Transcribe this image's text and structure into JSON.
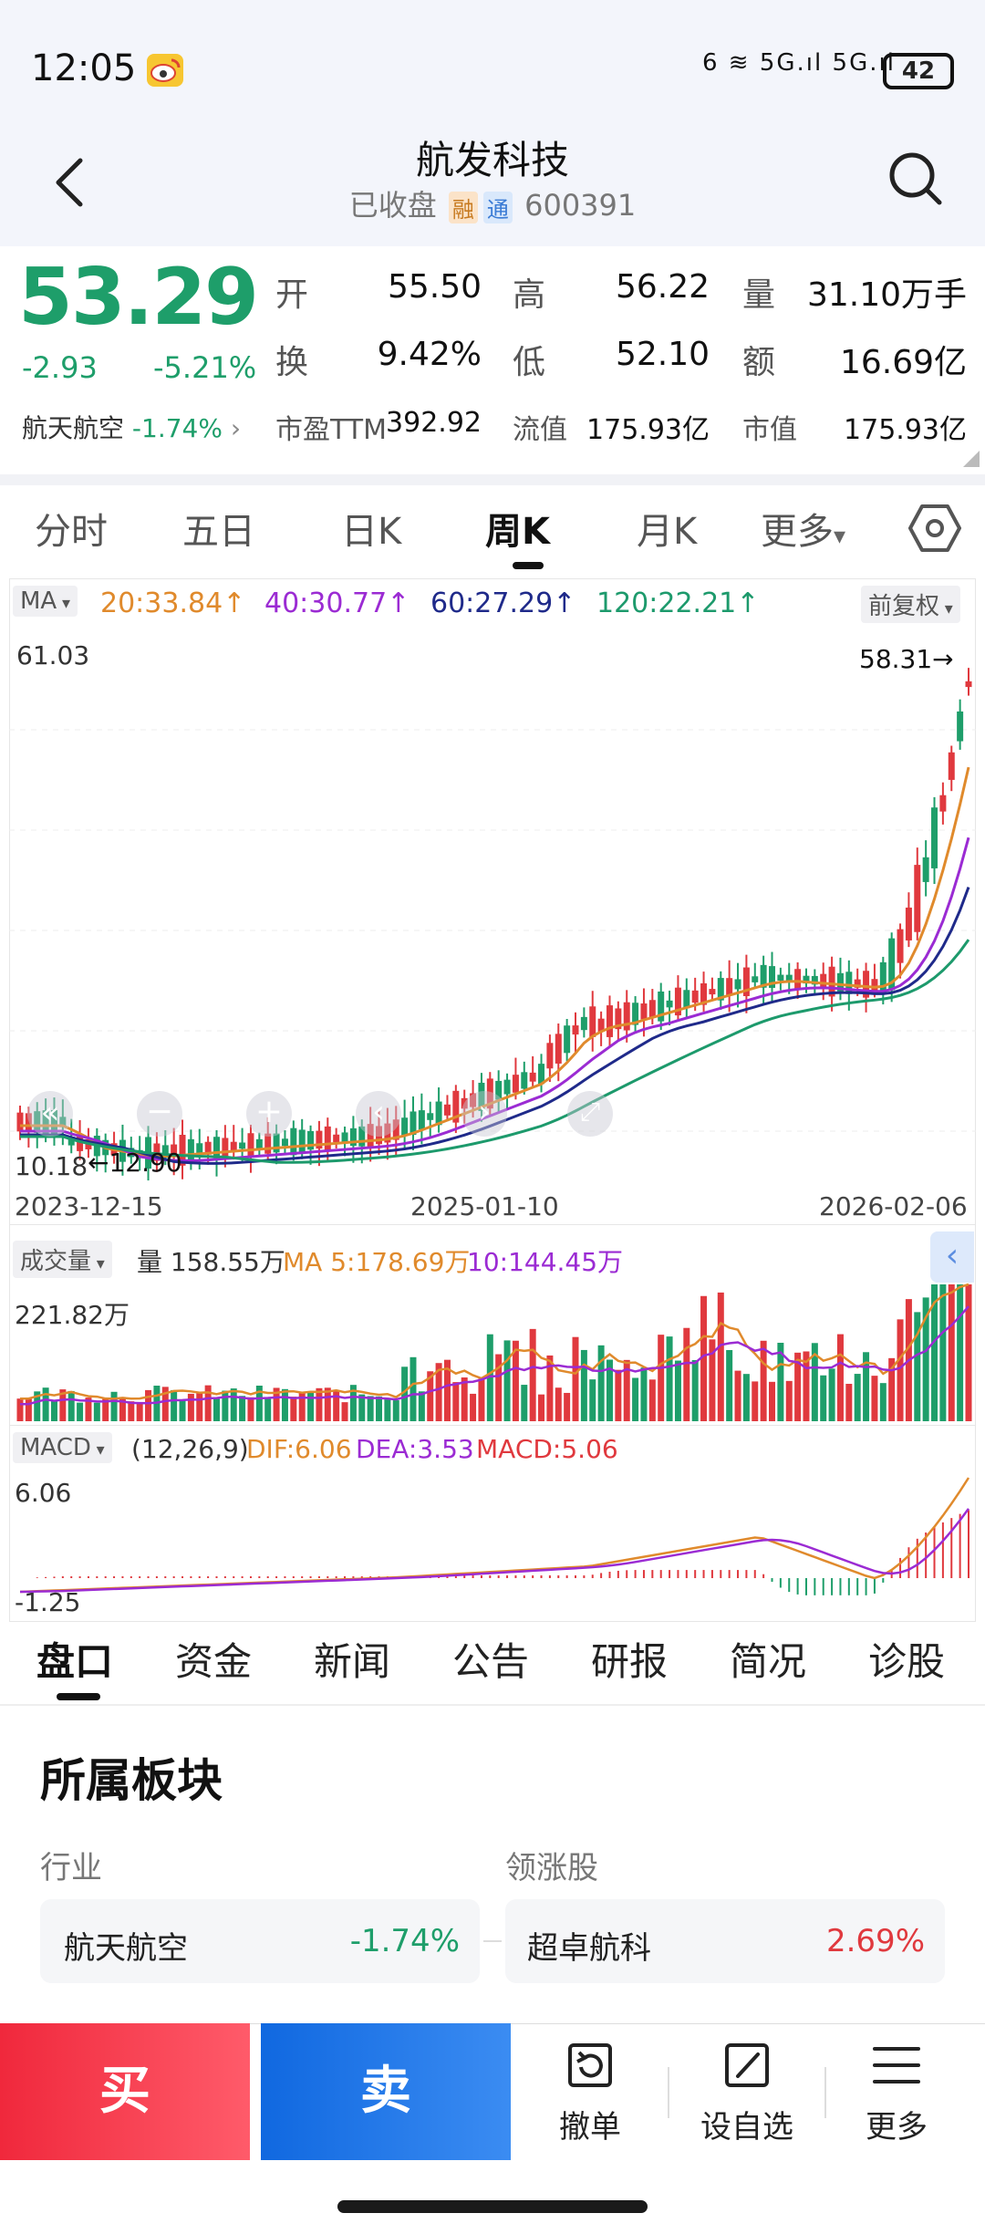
{
  "status_bar": {
    "time": "12:05",
    "network": "6 ≋ 5G.ıl 5G.ıl",
    "battery": "42"
  },
  "header": {
    "title": "航发科技",
    "status": "已收盘",
    "tag_rong": "融",
    "tag_tong": "通",
    "code": "600391"
  },
  "quote": {
    "price": "53.29",
    "change": "-2.93",
    "change_pct": "-5.21%",
    "sector": "航天航空",
    "sector_pct": "-1.74%",
    "open_label": "开",
    "open": "55.50",
    "high_label": "高",
    "high": "56.22",
    "volume_label": "量",
    "volume": "31.10万手",
    "turnover_label": "换",
    "turnover": "9.42%",
    "low_label": "低",
    "low": "52.10",
    "amount_label": "额",
    "amount": "16.69亿",
    "pe_label": "市盈TTM",
    "pe": "392.92",
    "float_label": "流值",
    "float_value": "175.93亿",
    "mcap_label": "市值",
    "mcap": "175.93亿"
  },
  "period_tabs": [
    "分时",
    "五日",
    "日K",
    "周K",
    "月K",
    "更多"
  ],
  "period_active": "周K",
  "chart": {
    "ma_chip": "MA",
    "ma20": "20:33.84↑",
    "ma40": "40:30.77↑",
    "ma60": "60:27.29↑",
    "ma120": "120:22.21↑",
    "adjust": "前复权",
    "y_max": "61.03",
    "y_min": "10.18",
    "low_mark": "←12.90",
    "high_mark": "58.31→",
    "date_start": "2023-12-15",
    "date_mid": "2025-01-10",
    "date_end": "2026-02-06",
    "vol_chip": "成交量",
    "vol_text": "量 158.55万",
    "vol_ma5": "MA 5:178.69万",
    "vol_ma10": "10:144.45万",
    "vol_max": "221.82万",
    "macd_chip": "MACD",
    "macd_params": "(12,26,9)",
    "dif": "DIF:6.06",
    "dea": "DEA:3.53",
    "macd": "MACD:5.06",
    "macd_max": "6.06",
    "macd_min": "-1.25"
  },
  "section_tabs": [
    "盘口",
    "资金",
    "新闻",
    "公告",
    "研报",
    "简况",
    "诊股"
  ],
  "section_active": "盘口",
  "sector_block": {
    "title": "所属板块",
    "industry_label": "行业",
    "leader_label": "领涨股",
    "industry_name": "航天航空",
    "industry_pct": "-1.74%",
    "leader_name": "超卓航科",
    "leader_pct": "2.69%"
  },
  "bottom_bar": {
    "buy": "买",
    "sell": "卖",
    "cancel": "撤单",
    "watch": "设自选",
    "more": "更多"
  },
  "colors": {
    "up": "#e0393e",
    "down": "#1e9e6a",
    "ma20": "#e08a2c",
    "ma40": "#9b2bd3",
    "ma60": "#1f2a8a",
    "ma120": "#1d9a6c",
    "buy": "#f0283c",
    "sell": "#1068e0"
  }
}
